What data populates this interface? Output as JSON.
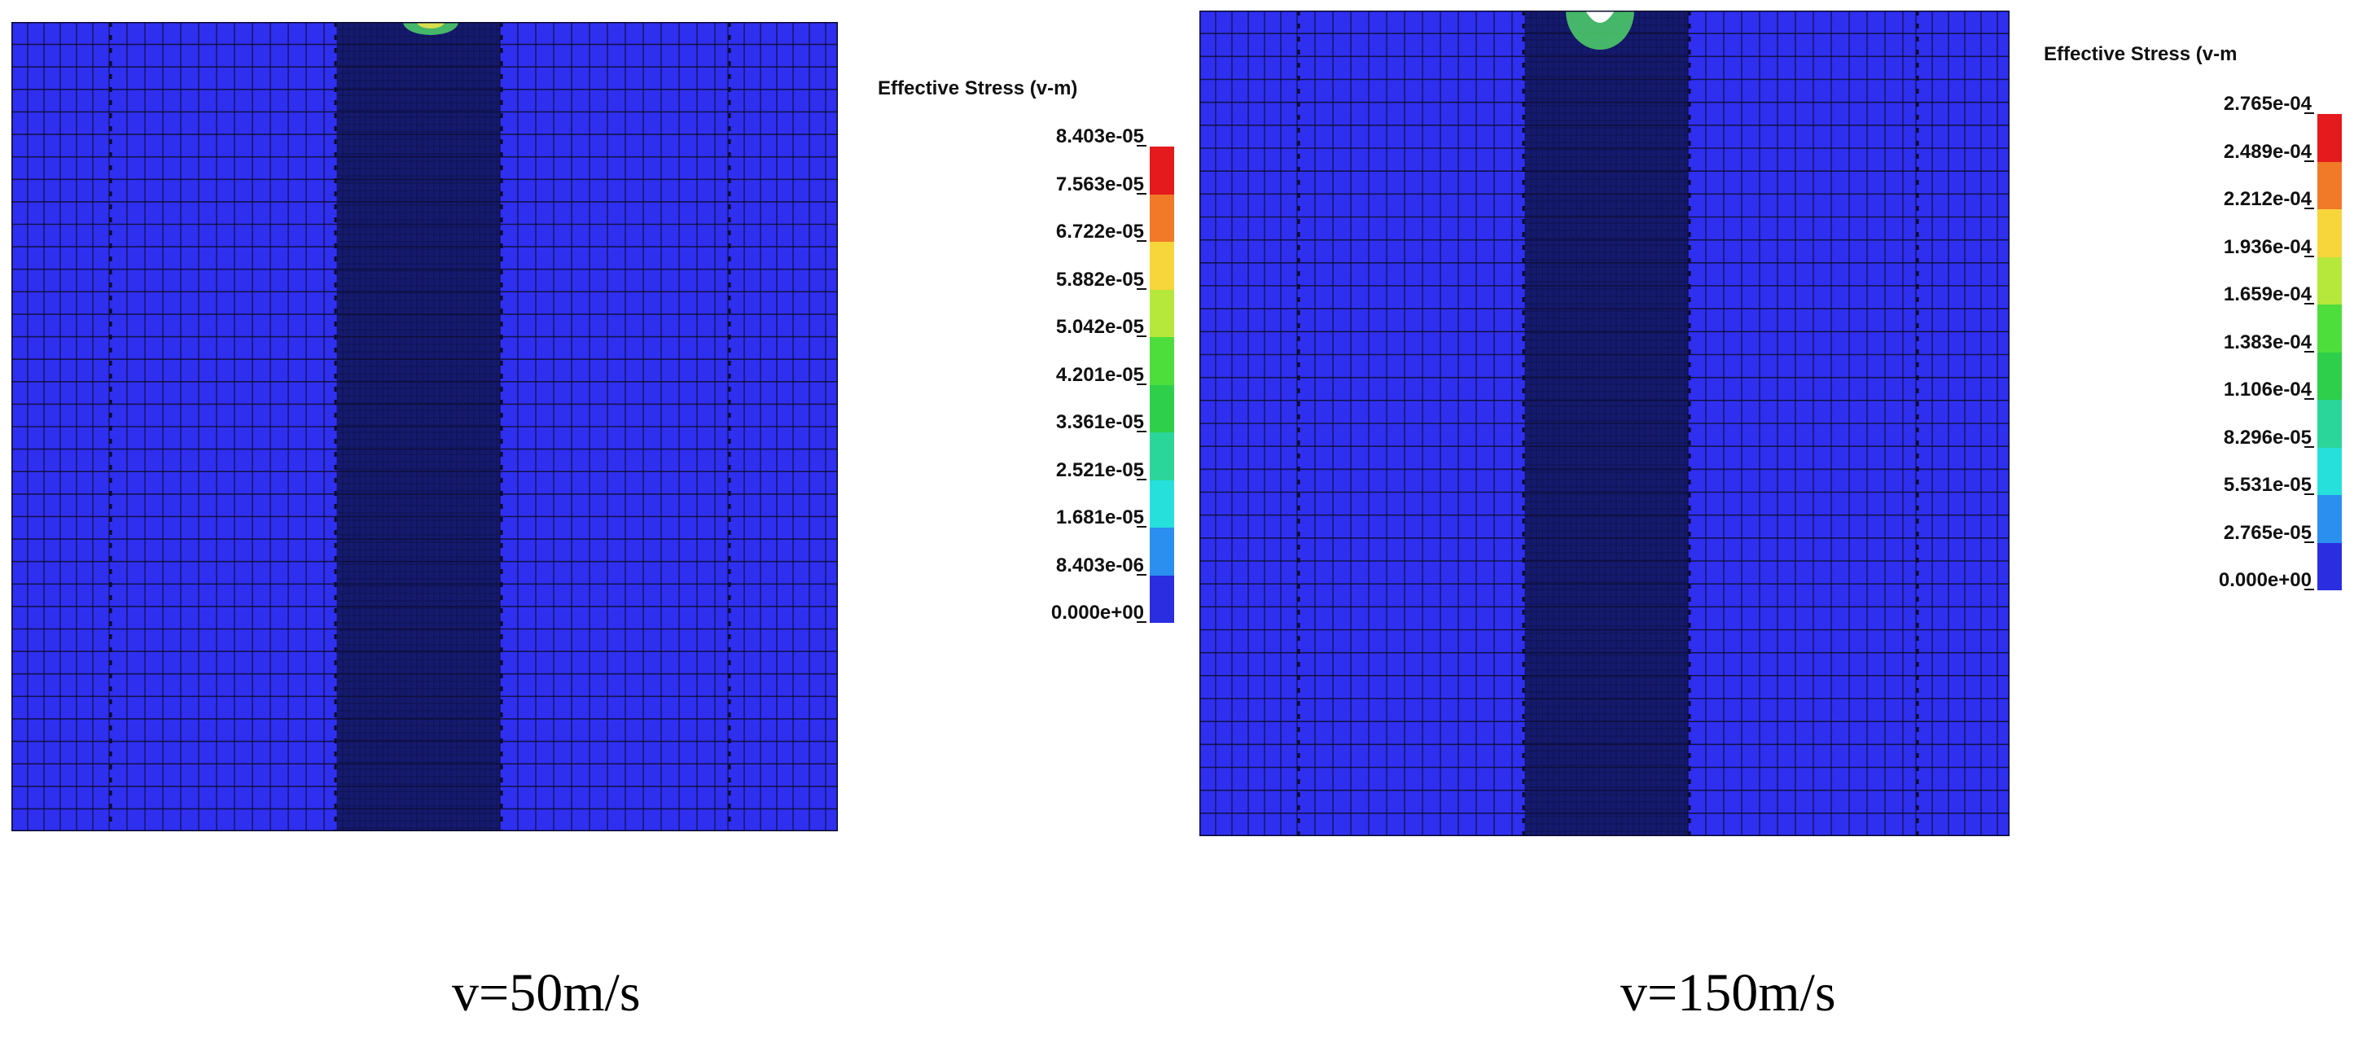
{
  "figure": {
    "panels": [
      {
        "caption": "v=50m/s",
        "legend": {
          "title": "Effective Stress (v-m)",
          "labels": [
            "8.403e-05",
            "7.563e-05",
            "6.722e-05",
            "5.882e-05",
            "5.042e-05",
            "4.201e-05",
            "3.361e-05",
            "2.521e-05",
            "1.681e-05",
            "8.403e-06",
            "0.000e+00"
          ]
        }
      },
      {
        "caption": "v=150m/s",
        "legend": {
          "title": "Effective Stress (v-m",
          "labels": [
            "2.765e-04",
            "2.489e-04",
            "2.212e-04",
            "1.936e-04",
            "1.659e-04",
            "1.383e-04",
            "1.106e-04",
            "8.296e-05",
            "5.531e-05",
            "2.765e-05",
            "0.000e+00"
          ]
        }
      }
    ],
    "colorscale": [
      "#e41a1c",
      "#f07a28",
      "#f6d63a",
      "#b5e83a",
      "#4ede3c",
      "#2ecf4a",
      "#2bd69a",
      "#26e0dc",
      "#2b8ff0",
      "#2a2de0"
    ],
    "mesh_color": "#2f2ff0",
    "core_color": "#151a6e",
    "grid_line_color": "#0e0e36",
    "impact_colors": {
      "green": "#4fd36a",
      "white": "#ffffff",
      "yellow": "#e6e24a"
    }
  }
}
